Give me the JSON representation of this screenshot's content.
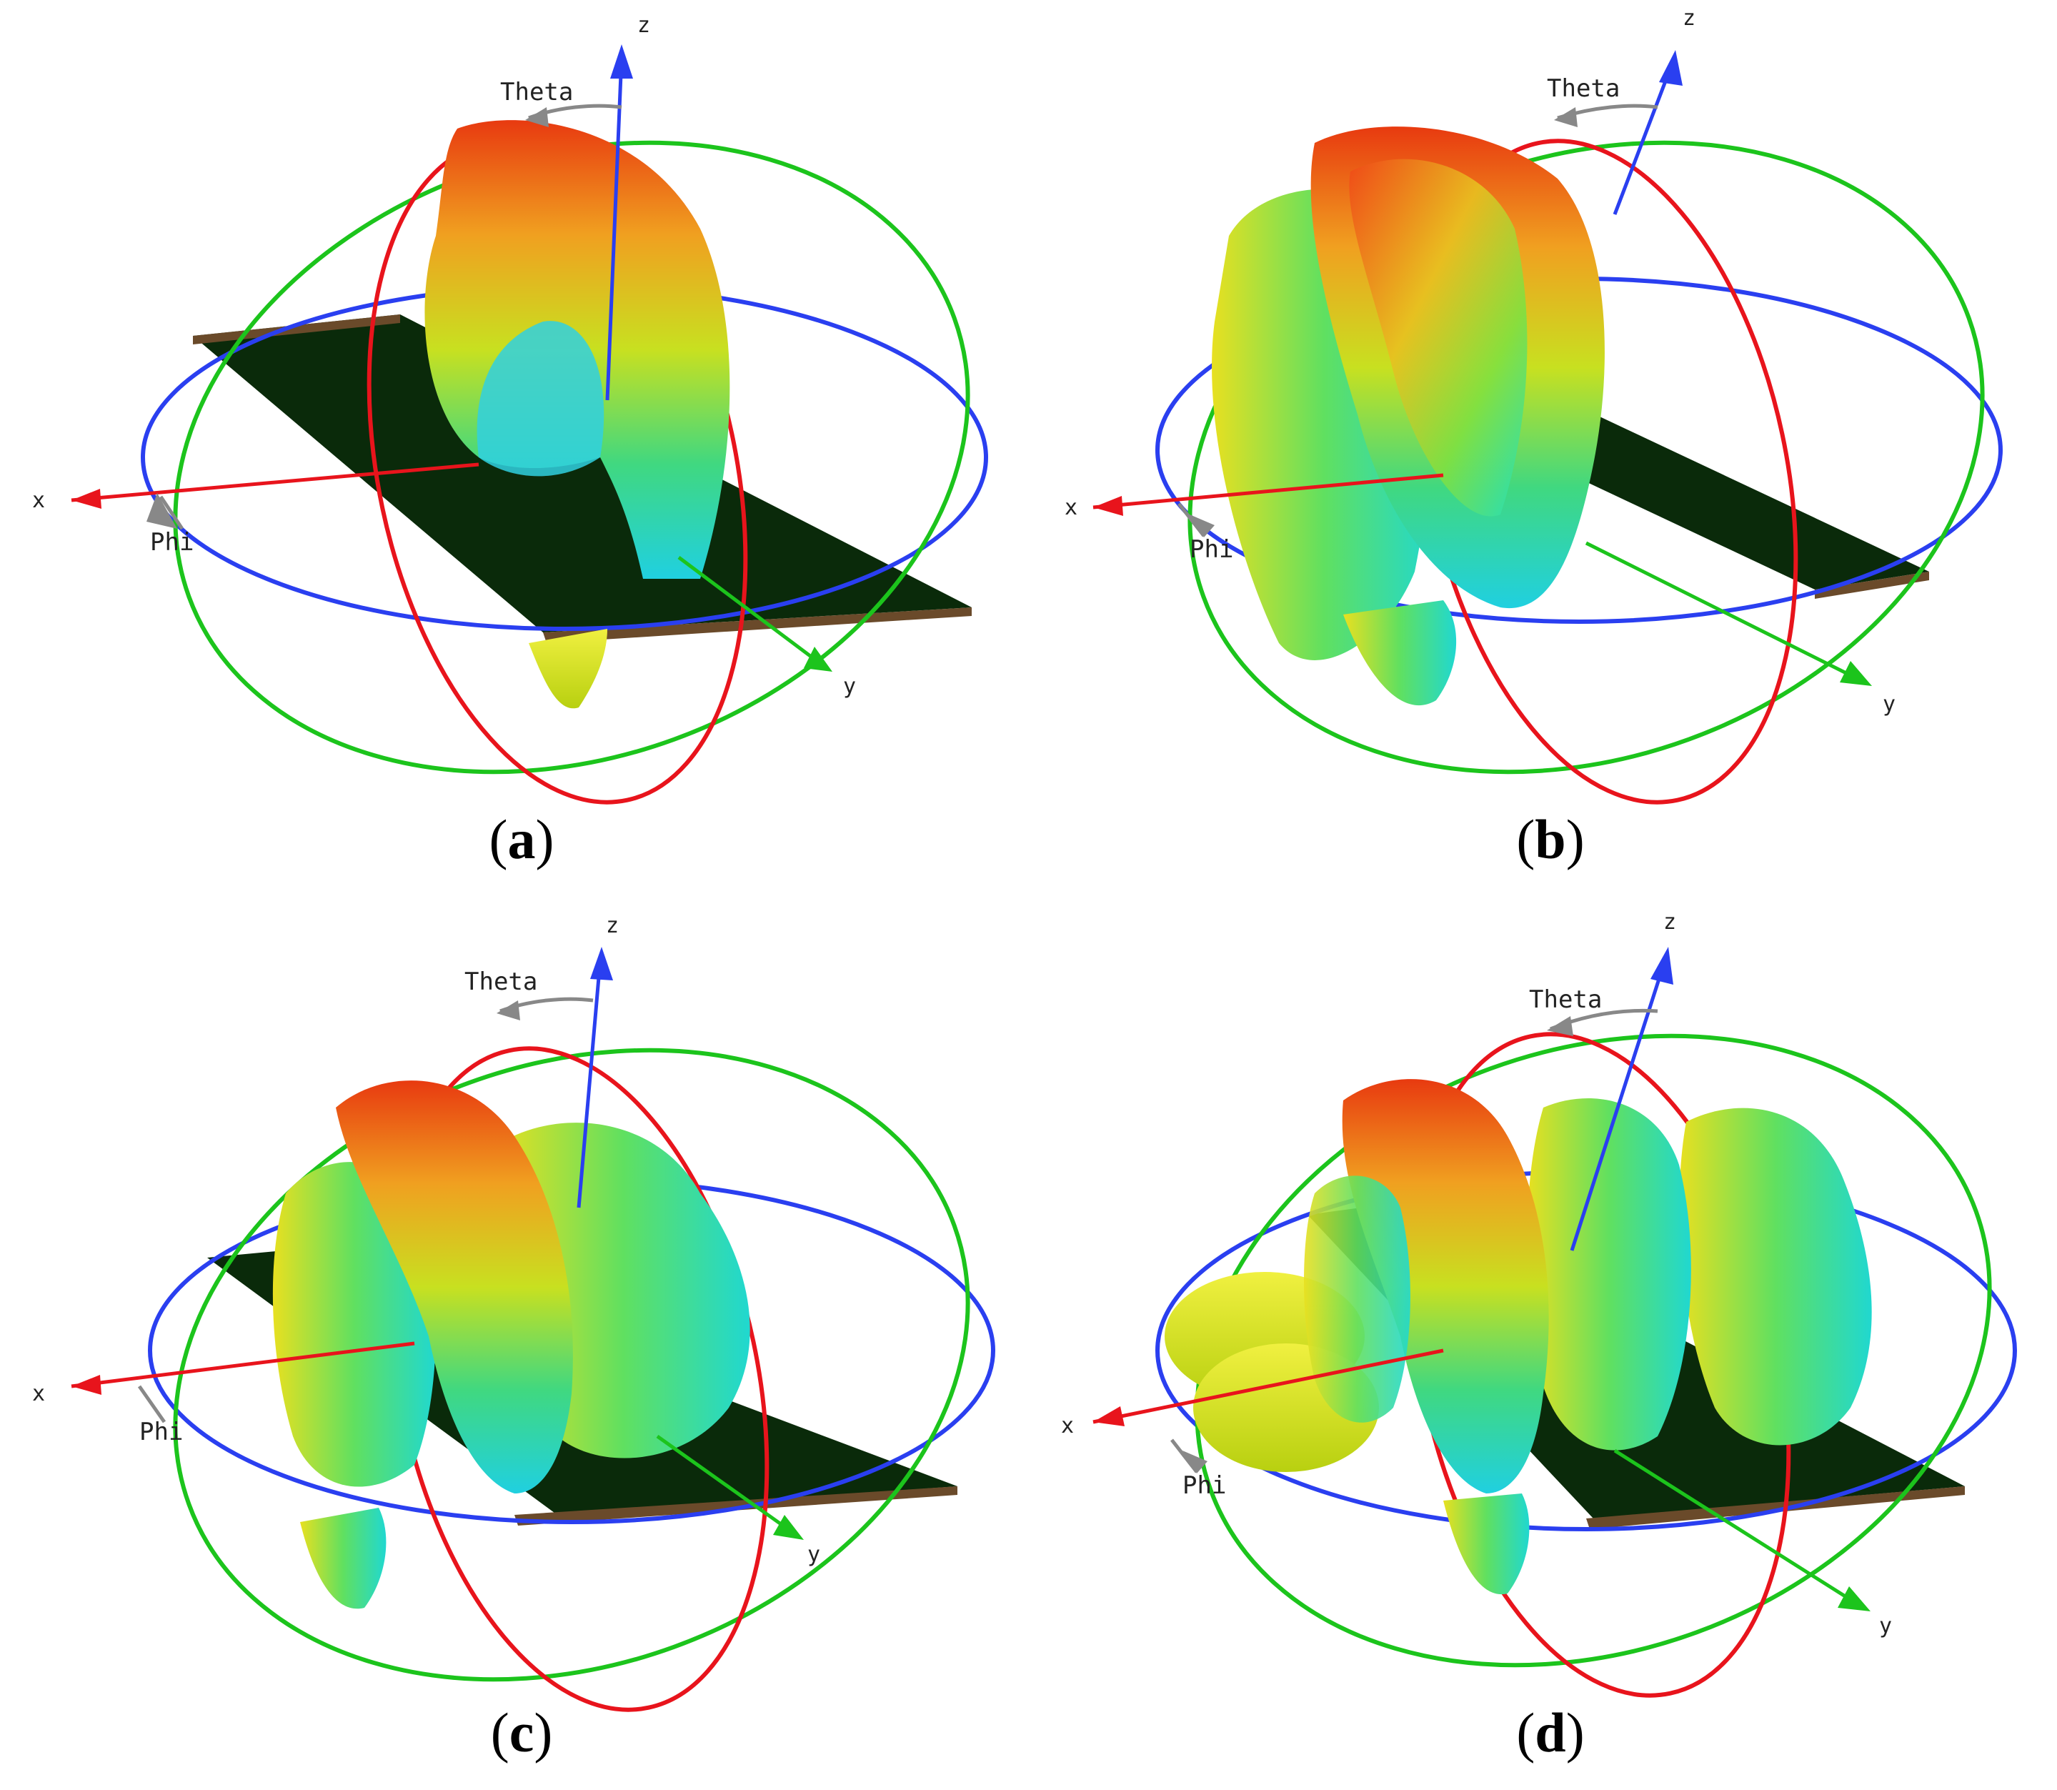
{
  "panels": [
    {
      "id": "a",
      "caption_open": "(",
      "caption_letter": "a",
      "caption_close": ")",
      "labels": {
        "z": "z",
        "x": "x",
        "y": "y",
        "theta": "Theta",
        "phi": "Phi"
      },
      "colors": {
        "x_axis": "#e8141c",
        "y_axis": "#1cc41c",
        "z_axis": "#2a3ff0",
        "plate": "#0a2a0a",
        "plate_edge": "#6a4a2a"
      }
    },
    {
      "id": "b",
      "caption_open": "(",
      "caption_letter": "b",
      "caption_close": ")",
      "labels": {
        "z": "z",
        "x": "x",
        "y": "y",
        "theta": "Theta",
        "phi": "Phi"
      },
      "colors": {
        "x_axis": "#e8141c",
        "y_axis": "#1cc41c",
        "z_axis": "#2a3ff0",
        "plate": "#0a2a0a",
        "plate_edge": "#6a4a2a"
      }
    },
    {
      "id": "c",
      "caption_open": "(",
      "caption_letter": "c",
      "caption_close": ")",
      "labels": {
        "z": "z",
        "x": "x",
        "y": "y",
        "theta": "Theta",
        "phi": "Phi"
      },
      "colors": {
        "x_axis": "#e8141c",
        "y_axis": "#1cc41c",
        "z_axis": "#2a3ff0",
        "plate": "#0a2a0a",
        "plate_edge": "#6a4a2a"
      }
    },
    {
      "id": "d",
      "caption_open": "(",
      "caption_letter": "d",
      "caption_close": ")",
      "labels": {
        "z": "z",
        "x": "x",
        "y": "y",
        "theta": "Theta",
        "phi": "Phi"
      },
      "colors": {
        "x_axis": "#e8141c",
        "y_axis": "#1cc41c",
        "z_axis": "#2a3ff0",
        "plate": "#0a2a0a",
        "plate_edge": "#6a4a2a"
      }
    }
  ]
}
